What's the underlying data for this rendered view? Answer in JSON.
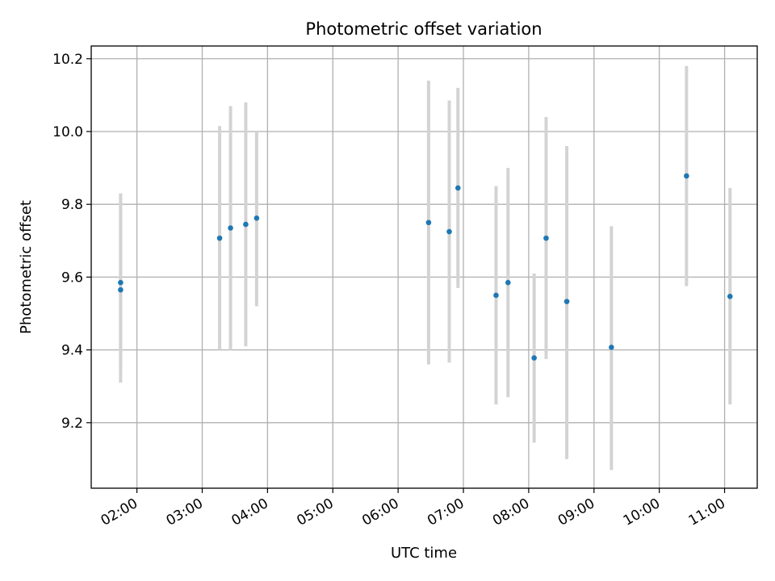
{
  "chart_data": {
    "type": "scatter",
    "title": "Photometric offset variation",
    "xlabel": "UTC time",
    "ylabel": "Photometric offset",
    "xlim": [
      "01:18",
      "11:30"
    ],
    "ylim": [
      9.02,
      10.235
    ],
    "xticks": [
      "02:00",
      "03:00",
      "04:00",
      "05:00",
      "06:00",
      "07:00",
      "08:00",
      "09:00",
      "10:00",
      "11:00"
    ],
    "yticks": [
      "9.2",
      "9.4",
      "9.6",
      "9.8",
      "10.0",
      "10.2"
    ],
    "grid": true,
    "colors": {
      "point": "#1f77b4",
      "errorbar": "#d3d3d3"
    },
    "points": [
      {
        "x": "01:45",
        "y": 9.585,
        "ylow": 9.34,
        "yhigh": 9.83
      },
      {
        "x": "01:45",
        "y": 9.565,
        "ylow": 9.31,
        "yhigh": 9.82
      },
      {
        "x": "03:16",
        "y": 9.707,
        "ylow": 9.4,
        "yhigh": 10.015
      },
      {
        "x": "03:26",
        "y": 9.735,
        "ylow": 9.4,
        "yhigh": 10.07
      },
      {
        "x": "03:40",
        "y": 9.745,
        "ylow": 9.41,
        "yhigh": 10.08
      },
      {
        "x": "03:50",
        "y": 9.762,
        "ylow": 9.52,
        "yhigh": 10.0
      },
      {
        "x": "06:28",
        "y": 9.75,
        "ylow": 9.36,
        "yhigh": 10.14
      },
      {
        "x": "06:47",
        "y": 9.725,
        "ylow": 9.365,
        "yhigh": 10.085
      },
      {
        "x": "06:55",
        "y": 9.845,
        "ylow": 9.57,
        "yhigh": 10.12
      },
      {
        "x": "07:30",
        "y": 9.55,
        "ylow": 9.25,
        "yhigh": 9.85
      },
      {
        "x": "07:41",
        "y": 9.585,
        "ylow": 9.27,
        "yhigh": 9.9
      },
      {
        "x": "08:05",
        "y": 9.378,
        "ylow": 9.145,
        "yhigh": 9.61
      },
      {
        "x": "08:16",
        "y": 9.707,
        "ylow": 9.375,
        "yhigh": 10.04
      },
      {
        "x": "08:35",
        "y": 9.533,
        "ylow": 9.1,
        "yhigh": 9.96
      },
      {
        "x": "09:16",
        "y": 9.407,
        "ylow": 9.07,
        "yhigh": 9.74
      },
      {
        "x": "10:25",
        "y": 9.878,
        "ylow": 9.575,
        "yhigh": 10.18
      },
      {
        "x": "11:05",
        "y": 9.547,
        "ylow": 9.25,
        "yhigh": 9.845
      }
    ]
  }
}
